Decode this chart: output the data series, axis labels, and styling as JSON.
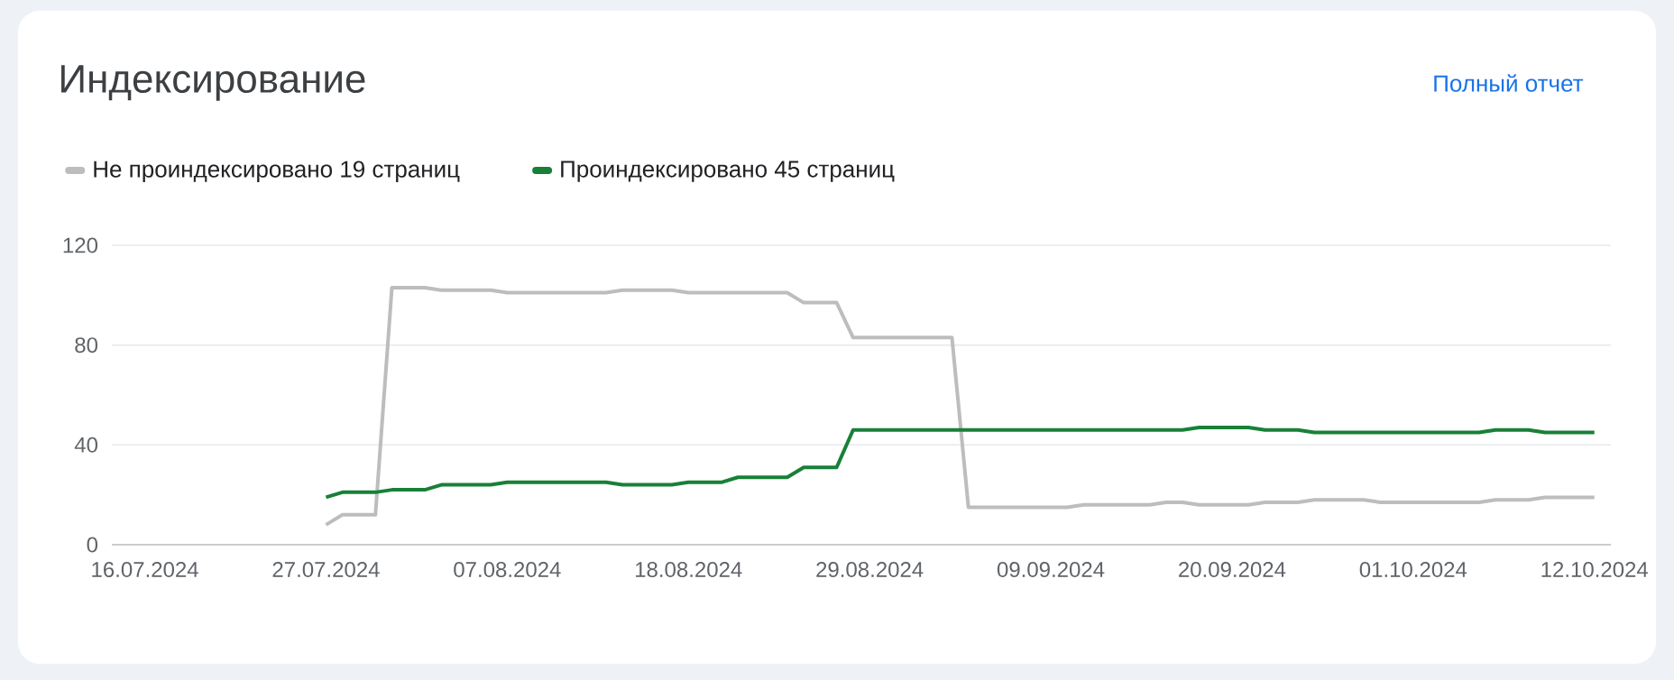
{
  "chart_data": {
    "type": "line",
    "title": "Индексирование",
    "annotations": [
      "Полный отчет"
    ],
    "legend": "top left",
    "grid": "y",
    "line_style": "solid",
    "xlim": [
      "2024-07-14",
      "2024-10-13"
    ],
    "xticks": [
      {
        "value": "2024-07-16",
        "label": "16.07.2024"
      },
      {
        "value": "2024-07-27",
        "label": "27.07.2024"
      },
      {
        "value": "2024-08-07",
        "label": "07.08.2024"
      },
      {
        "value": "2024-08-18",
        "label": "18.08.2024"
      },
      {
        "value": "2024-08-29",
        "label": "29.08.2024"
      },
      {
        "value": "2024-09-09",
        "label": "09.09.2024"
      },
      {
        "value": "2024-09-20",
        "label": "20.09.2024"
      },
      {
        "value": "2024-10-01",
        "label": "01.10.2024"
      },
      {
        "value": "2024-10-12",
        "label": "12.10.2024"
      }
    ],
    "ylim": [
      0,
      120
    ],
    "yticks": [
      0,
      40,
      80,
      120
    ],
    "series": [
      {
        "name": "Не проиндексировано 19 страниц",
        "color": "#bdbdbd",
        "x": [
          "2024-07-27",
          "2024-07-28",
          "2024-07-30",
          "2024-07-31",
          "2024-08-02",
          "2024-08-03",
          "2024-08-06",
          "2024-08-07",
          "2024-08-13",
          "2024-08-14",
          "2024-08-17",
          "2024-08-18",
          "2024-08-24",
          "2024-08-25",
          "2024-08-27",
          "2024-08-28",
          "2024-09-03",
          "2024-09-04",
          "2024-09-10",
          "2024-09-11",
          "2024-09-15",
          "2024-09-16",
          "2024-09-17",
          "2024-09-18",
          "2024-09-21",
          "2024-09-22",
          "2024-09-24",
          "2024-09-25",
          "2024-09-28",
          "2024-09-29",
          "2024-10-05",
          "2024-10-06",
          "2024-10-08",
          "2024-10-09",
          "2024-10-12"
        ],
        "values": [
          8,
          12,
          12,
          103,
          103,
          102,
          102,
          101,
          101,
          102,
          102,
          101,
          101,
          97,
          97,
          83,
          83,
          15,
          15,
          16,
          16,
          17,
          17,
          16,
          16,
          17,
          17,
          18,
          18,
          17,
          17,
          18,
          18,
          19,
          19
        ]
      },
      {
        "name": "Проиндексировано 45 страниц",
        "color": "#188038",
        "x": [
          "2024-07-27",
          "2024-07-28",
          "2024-07-30",
          "2024-07-31",
          "2024-08-02",
          "2024-08-03",
          "2024-08-06",
          "2024-08-07",
          "2024-08-13",
          "2024-08-14",
          "2024-08-17",
          "2024-08-18",
          "2024-08-20",
          "2024-08-21",
          "2024-08-24",
          "2024-08-25",
          "2024-08-27",
          "2024-08-28",
          "2024-09-17",
          "2024-09-18",
          "2024-09-21",
          "2024-09-22",
          "2024-09-24",
          "2024-09-25",
          "2024-10-05",
          "2024-10-06",
          "2024-10-08",
          "2024-10-09",
          "2024-10-12"
        ],
        "values": [
          19,
          21,
          21,
          22,
          22,
          24,
          24,
          25,
          25,
          24,
          24,
          25,
          25,
          27,
          27,
          31,
          31,
          46,
          46,
          47,
          47,
          46,
          46,
          45,
          45,
          46,
          46,
          45,
          45
        ]
      }
    ]
  }
}
